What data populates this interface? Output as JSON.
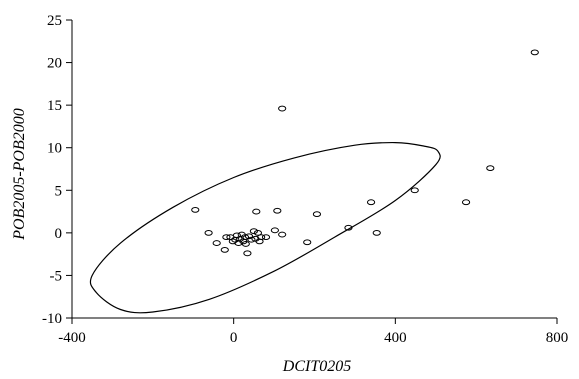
{
  "chart_data": {
    "type": "scatter",
    "title": "",
    "xlabel": "DCIT0205",
    "ylabel": "POB2005-POB2000",
    "xlim": [
      -400,
      800
    ],
    "ylim": [
      -10,
      25
    ],
    "x_ticks": [
      -400,
      0,
      400,
      800
    ],
    "y_ticks": [
      -10,
      -5,
      0,
      5,
      10,
      15,
      20,
      25
    ],
    "grid": false,
    "legend": "none",
    "marker": "open-ellipse",
    "points": [
      [
        -95,
        2.7
      ],
      [
        -62,
        0.0
      ],
      [
        -42,
        -1.2
      ],
      [
        -22,
        -2.0
      ],
      [
        -18,
        -0.5
      ],
      [
        -8,
        -0.5
      ],
      [
        -2,
        -1.0
      ],
      [
        4,
        -0.8
      ],
      [
        8,
        -0.3
      ],
      [
        12,
        -1.2
      ],
      [
        16,
        -0.7
      ],
      [
        20,
        -0.2
      ],
      [
        24,
        -1.0
      ],
      [
        28,
        -0.5
      ],
      [
        30,
        -1.3
      ],
      [
        34,
        -2.4
      ],
      [
        38,
        -0.4
      ],
      [
        44,
        -0.8
      ],
      [
        50,
        0.2
      ],
      [
        54,
        -0.7
      ],
      [
        56,
        2.5
      ],
      [
        60,
        0.0
      ],
      [
        64,
        -1.0
      ],
      [
        68,
        -0.5
      ],
      [
        80,
        -0.5
      ],
      [
        102,
        0.3
      ],
      [
        108,
        2.6
      ],
      [
        120,
        -0.2
      ],
      [
        120,
        14.6
      ],
      [
        182,
        -1.1
      ],
      [
        206,
        2.2
      ],
      [
        284,
        0.6
      ],
      [
        340,
        3.6
      ],
      [
        354,
        0.0
      ],
      [
        448,
        5.0
      ],
      [
        575,
        3.6
      ],
      [
        635,
        7.6
      ],
      [
        745,
        21.2
      ]
    ],
    "ellipse_outline": [
      [
        -340,
        -7.0
      ],
      [
        -280,
        -9.0
      ],
      [
        -200,
        -9.3
      ],
      [
        -60,
        -7.8
      ],
      [
        100,
        -4.5
      ],
      [
        250,
        -0.5
      ],
      [
        400,
        3.8
      ],
      [
        500,
        8.0
      ],
      [
        505,
        9.6
      ],
      [
        470,
        10.2
      ],
      [
        400,
        10.6
      ],
      [
        300,
        10.3
      ],
      [
        150,
        8.8
      ],
      [
        0,
        6.5
      ],
      [
        -150,
        3.0
      ],
      [
        -280,
        -1.2
      ],
      [
        -350,
        -5.0
      ]
    ]
  }
}
